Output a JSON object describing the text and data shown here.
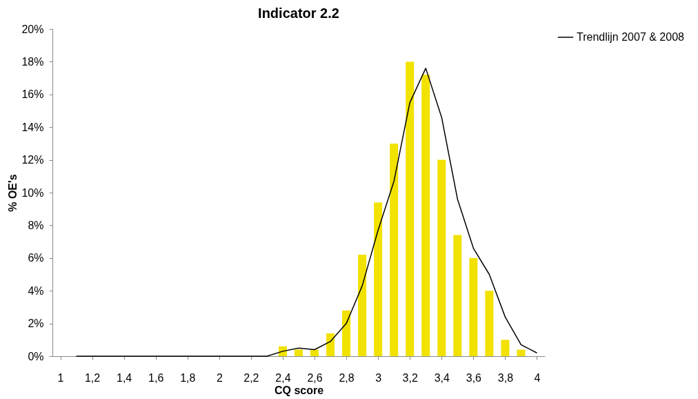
{
  "chart_data": {
    "type": "bar",
    "title": "Indicator 2.2",
    "xlabel": "CQ score",
    "ylabel": "% OE's",
    "xlim": [
      0.95,
      4.05
    ],
    "xticks": [
      1,
      {
        "value": 1.2,
        "label": "1,2"
      },
      {
        "value": 1.4,
        "label": "1,4"
      },
      {
        "value": 1.6,
        "label": "1,6"
      },
      {
        "value": 1.8,
        "label": "1,8"
      },
      2,
      {
        "value": 2.2,
        "label": "2,2"
      },
      {
        "value": 2.4,
        "label": "2,4"
      },
      {
        "value": 2.6,
        "label": "2,6"
      },
      {
        "value": 2.8,
        "label": "2,8"
      },
      3,
      {
        "value": 3.2,
        "label": "3,2"
      },
      {
        "value": 3.4,
        "label": "3,4"
      },
      {
        "value": 3.6,
        "label": "3,6"
      },
      {
        "value": 3.8,
        "label": "3,8"
      },
      4
    ],
    "ylim": [
      0,
      20
    ],
    "yticks": [
      {
        "value": 0,
        "label": "0%"
      },
      {
        "value": 2,
        "label": "2%"
      },
      {
        "value": 4,
        "label": "4%"
      },
      {
        "value": 6,
        "label": "6%"
      },
      {
        "value": 8,
        "label": "8%"
      },
      {
        "value": 10,
        "label": "10%"
      },
      {
        "value": 12,
        "label": "12%"
      },
      {
        "value": 14,
        "label": "14%"
      },
      {
        "value": 16,
        "label": "16%"
      },
      {
        "value": 18,
        "label": "18%"
      },
      {
        "value": 20,
        "label": "20%"
      }
    ],
    "grid": false,
    "legend": "right",
    "series": [
      {
        "color": "#f2e200",
        "x": [
          2.4,
          2.5,
          2.6,
          2.7,
          2.8,
          2.9,
          3.0,
          3.1,
          3.2,
          3.3,
          3.4,
          3.5,
          3.6,
          3.7,
          3.8,
          3.9
        ],
        "values": [
          0.6,
          0.4,
          0.4,
          1.4,
          2.8,
          6.2,
          9.4,
          13,
          18,
          17.2,
          12,
          7.4,
          6,
          4,
          1,
          0.4
        ]
      },
      {
        "type": "line",
        "name": "Trendlijn 2007 & 2008",
        "color": "#000000",
        "x": [
          1.1,
          1.2,
          1.3,
          1.4,
          1.5,
          1.6,
          1.7,
          1.8,
          1.9,
          2.0,
          2.1,
          2.2,
          2.3,
          2.4,
          2.5,
          2.6,
          2.7,
          2.8,
          2.9,
          3.0,
          3.1,
          3.2,
          3.3,
          3.4,
          3.5,
          3.6,
          3.7,
          3.8,
          3.9,
          4.0
        ],
        "values": [
          0,
          0,
          0,
          0,
          0,
          0,
          0,
          0,
          0,
          0,
          0,
          0,
          0,
          0.3,
          0.5,
          0.4,
          0.9,
          2,
          4.3,
          7.7,
          10.7,
          15.5,
          17.6,
          14.6,
          9.6,
          6.6,
          5,
          2.4,
          0.7,
          0.2
        ]
      }
    ]
  }
}
